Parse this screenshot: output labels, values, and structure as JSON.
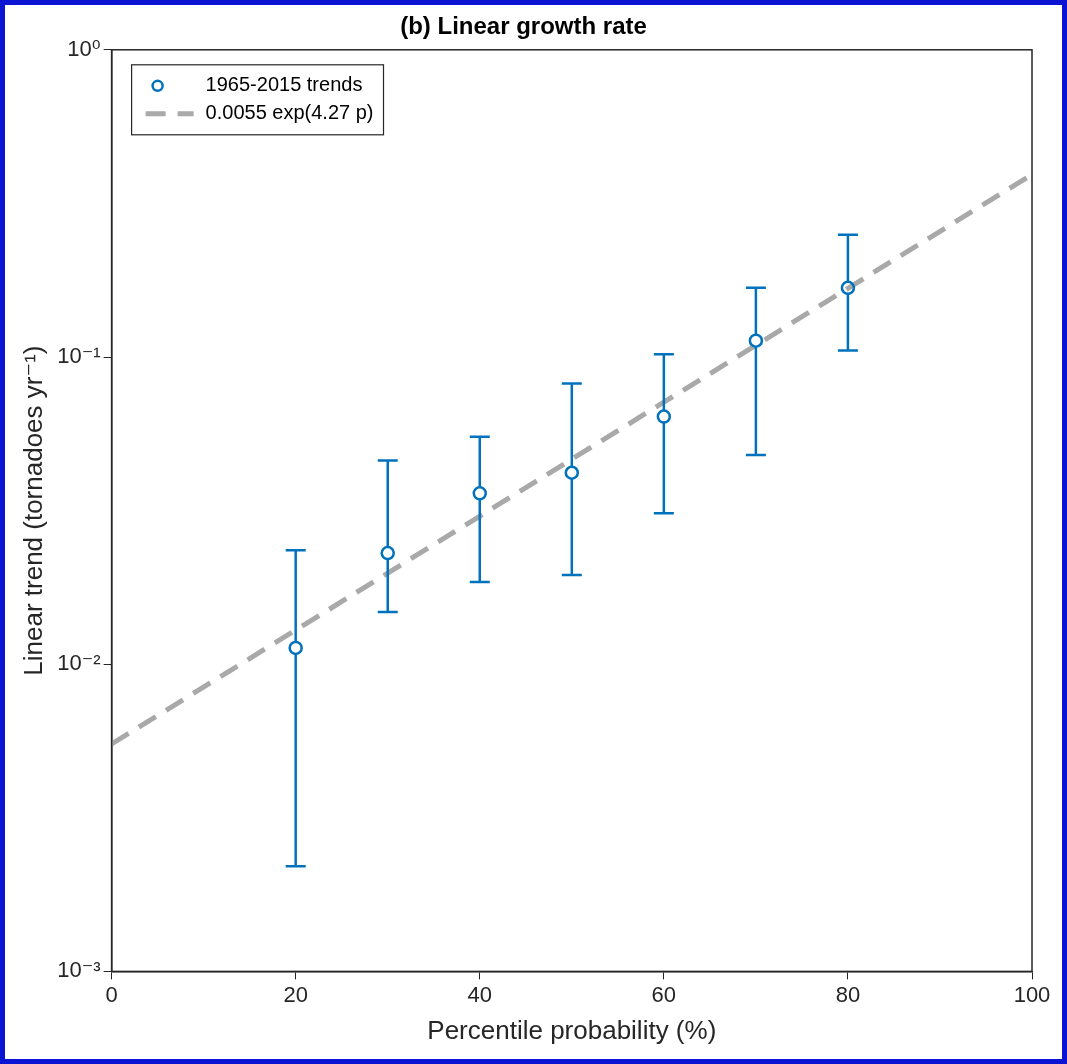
{
  "chart_data": {
    "type": "scatter",
    "title": "(b) Linear growth rate",
    "x_label": "Percentile probability (%)",
    "y_label": "Linear trend (tornadoes yr⁻¹)",
    "log": "y",
    "grid": false,
    "legend": "upper left",
    "xlim": [
      0,
      100
    ],
    "xticks": [
      0,
      20,
      40,
      60,
      80,
      100
    ],
    "ylim": [
      0.001,
      1
    ],
    "yticks": [
      {
        "value": 0.001,
        "label": "10⁻³"
      },
      {
        "value": 0.01,
        "label": "10⁻²"
      },
      {
        "value": 0.1,
        "label": "10⁻¹"
      },
      {
        "value": 1,
        "label": "10⁰"
      }
    ],
    "series": [
      {
        "name": "1965-2015 trends",
        "type": "scatter",
        "color": "#0072bd",
        "marker": "circle",
        "x": [
          20,
          30,
          40,
          50,
          60,
          70,
          80
        ],
        "values": [
          0.0113,
          0.023,
          0.036,
          0.042,
          0.064,
          0.113,
          0.168
        ],
        "error_low": [
          0.0022,
          0.0148,
          0.0185,
          0.0195,
          0.031,
          0.048,
          0.105
        ],
        "error_high": [
          0.0235,
          0.046,
          0.055,
          0.082,
          0.102,
          0.168,
          0.25
        ]
      },
      {
        "name": "0.0055 exp(4.27 p)",
        "type": "line",
        "color": "#a9a9a9",
        "line_style": "dashed",
        "x": [
          0,
          100
        ],
        "values": [
          0.0055,
          0.393
        ]
      }
    ]
  }
}
